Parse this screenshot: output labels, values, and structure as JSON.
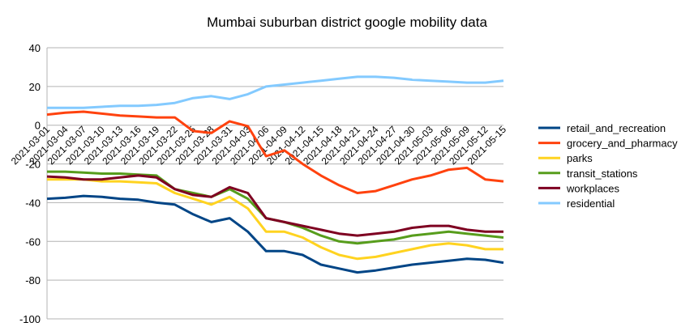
{
  "chart_data": {
    "type": "line",
    "title": "Mumbai suburban district google mobility data",
    "xlabel": "",
    "ylabel": "",
    "ylim": [
      -100,
      40
    ],
    "yticks": [
      40,
      20,
      0,
      -20,
      -40,
      -60,
      -80,
      -100
    ],
    "ytick_labels": [
      "40",
      "20",
      "0",
      "-20",
      "-40",
      "-60",
      "-80",
      "-100"
    ],
    "grid": "horizontal",
    "legend_position": "right",
    "x": [
      "2021-03-01",
      "2021-03-04",
      "2021-03-07",
      "2021-03-10",
      "2021-03-13",
      "2021-03-16",
      "2021-03-19",
      "2021-03-22",
      "2021-03-25",
      "2021-03-28",
      "2021-03-31",
      "2021-04-03",
      "2021-04-06",
      "2021-04-09",
      "2021-04-12",
      "2021-04-15",
      "2021-04-18",
      "2021-04-21",
      "2021-04-24",
      "2021-04-27",
      "2021-04-30",
      "2021-05-03",
      "2021-05-06",
      "2021-05-09",
      "2021-05-12",
      "2021-05-15"
    ],
    "series": [
      {
        "name": "retail_and_recreation",
        "color": "#004586",
        "values": [
          -38,
          -37.5,
          -36.5,
          -37,
          -38,
          -38.5,
          -40,
          -41,
          -46,
          -50,
          -48,
          -55,
          -65,
          -65,
          -67,
          -72,
          -74,
          -76,
          -75,
          -73.5,
          -72,
          -71,
          -70,
          -69,
          -69.5,
          -71
        ]
      },
      {
        "name": "grocery_and_pharmacy",
        "color": "#ff420e",
        "values": [
          5.5,
          6.5,
          7,
          6,
          5,
          4.5,
          4,
          4,
          -3,
          -4,
          2,
          -0.5,
          -16,
          -13,
          -20,
          -26,
          -31,
          -35,
          -34,
          -31,
          -28,
          -26,
          -23,
          -22,
          -28,
          -29
        ]
      },
      {
        "name": "parks",
        "color": "#ffd320",
        "values": [
          -28,
          -28,
          -28,
          -29,
          -29,
          -29.5,
          -30,
          -35,
          -38,
          -41,
          -37,
          -43,
          -55,
          -55,
          -58,
          -63,
          -67,
          -69,
          -68,
          -66,
          -64,
          -62,
          -61,
          -62,
          -64,
          -64
        ]
      },
      {
        "name": "transit_stations",
        "color": "#579d1c",
        "values": [
          -24,
          -24,
          -24.5,
          -25,
          -25,
          -25.5,
          -26,
          -33,
          -35,
          -37,
          -33,
          -38,
          -48,
          -50,
          -53,
          -57,
          -60,
          -61,
          -60,
          -59,
          -57,
          -56,
          -55,
          -56,
          -57,
          -58
        ]
      },
      {
        "name": "workplaces",
        "color": "#7e0021",
        "values": [
          -26.5,
          -27,
          -28,
          -28,
          -27,
          -26,
          -27,
          -33,
          -36,
          -37,
          -32,
          -35,
          -48,
          -50,
          -52,
          -54,
          -56,
          -57,
          -56,
          -55,
          -53,
          -52,
          -52,
          -54,
          -55,
          -55
        ]
      },
      {
        "name": "residential",
        "color": "#83caff",
        "values": [
          9,
          9,
          9,
          9.5,
          10,
          10,
          10.5,
          11.5,
          14,
          15,
          13.5,
          16,
          20,
          21,
          22,
          23,
          24,
          25,
          25,
          24.5,
          23.5,
          23,
          22.5,
          22,
          22,
          23
        ]
      }
    ]
  }
}
